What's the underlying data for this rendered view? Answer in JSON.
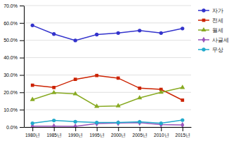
{
  "chart_data": {
    "type": "line",
    "x": [
      1980,
      1985,
      1990,
      1995,
      2000,
      2005,
      2010,
      2015
    ],
    "xlim": [
      1978,
      2017
    ],
    "xticks": [
      {
        "value": 1980,
        "label": "1980년"
      },
      {
        "value": 1985,
        "label": "1985년"
      },
      {
        "value": 1990,
        "label": "1990년"
      },
      {
        "value": 1995,
        "label": "1995년"
      },
      {
        "value": 2000,
        "label": "2000년"
      },
      {
        "value": 2005,
        "label": "2005년"
      },
      {
        "value": 2010,
        "label": "2010년"
      },
      {
        "value": 2015,
        "label": "2015년"
      }
    ],
    "ylim": [
      0,
      70
    ],
    "yticks": [
      {
        "value": 0,
        "label": "0.0%"
      },
      {
        "value": 10,
        "label": "10.0%"
      },
      {
        "value": 20,
        "label": "20.0%"
      },
      {
        "value": 30,
        "label": "30.0%"
      },
      {
        "value": 40,
        "label": "40.0%"
      },
      {
        "value": 50,
        "label": "50.0%"
      },
      {
        "value": 60,
        "label": "60.0%"
      },
      {
        "value": 70,
        "label": "70.0%"
      }
    ],
    "grid": "y",
    "legend": "right",
    "series": [
      {
        "name": "자가",
        "color": "#3333cc",
        "marker": "circle",
        "values": [
          58.6,
          53.6,
          49.9,
          53.3,
          54.2,
          55.6,
          54.2,
          56.8
        ]
      },
      {
        "name": "전세",
        "color": "#cc2200",
        "marker": "square",
        "values": [
          24.1,
          22.8,
          27.5,
          29.7,
          28.2,
          22.4,
          21.7,
          15.5
        ]
      },
      {
        "name": "월세",
        "color": "#88aa22",
        "marker": "triangle",
        "values": [
          15.8,
          19.8,
          19.1,
          11.9,
          12.2,
          16.8,
          20.0,
          22.8
        ]
      },
      {
        "name": "사글세",
        "color": "#9955bb",
        "marker": "diamond",
        "values": [
          0.5,
          0.5,
          0.4,
          2.0,
          2.3,
          2.5,
          1.4,
          1.2
        ]
      },
      {
        "name": "무상",
        "color": "#22aacc",
        "marker": "circle",
        "values": [
          2.2,
          3.8,
          3.1,
          2.6,
          2.6,
          3.0,
          2.2,
          4.0
        ]
      }
    ]
  }
}
